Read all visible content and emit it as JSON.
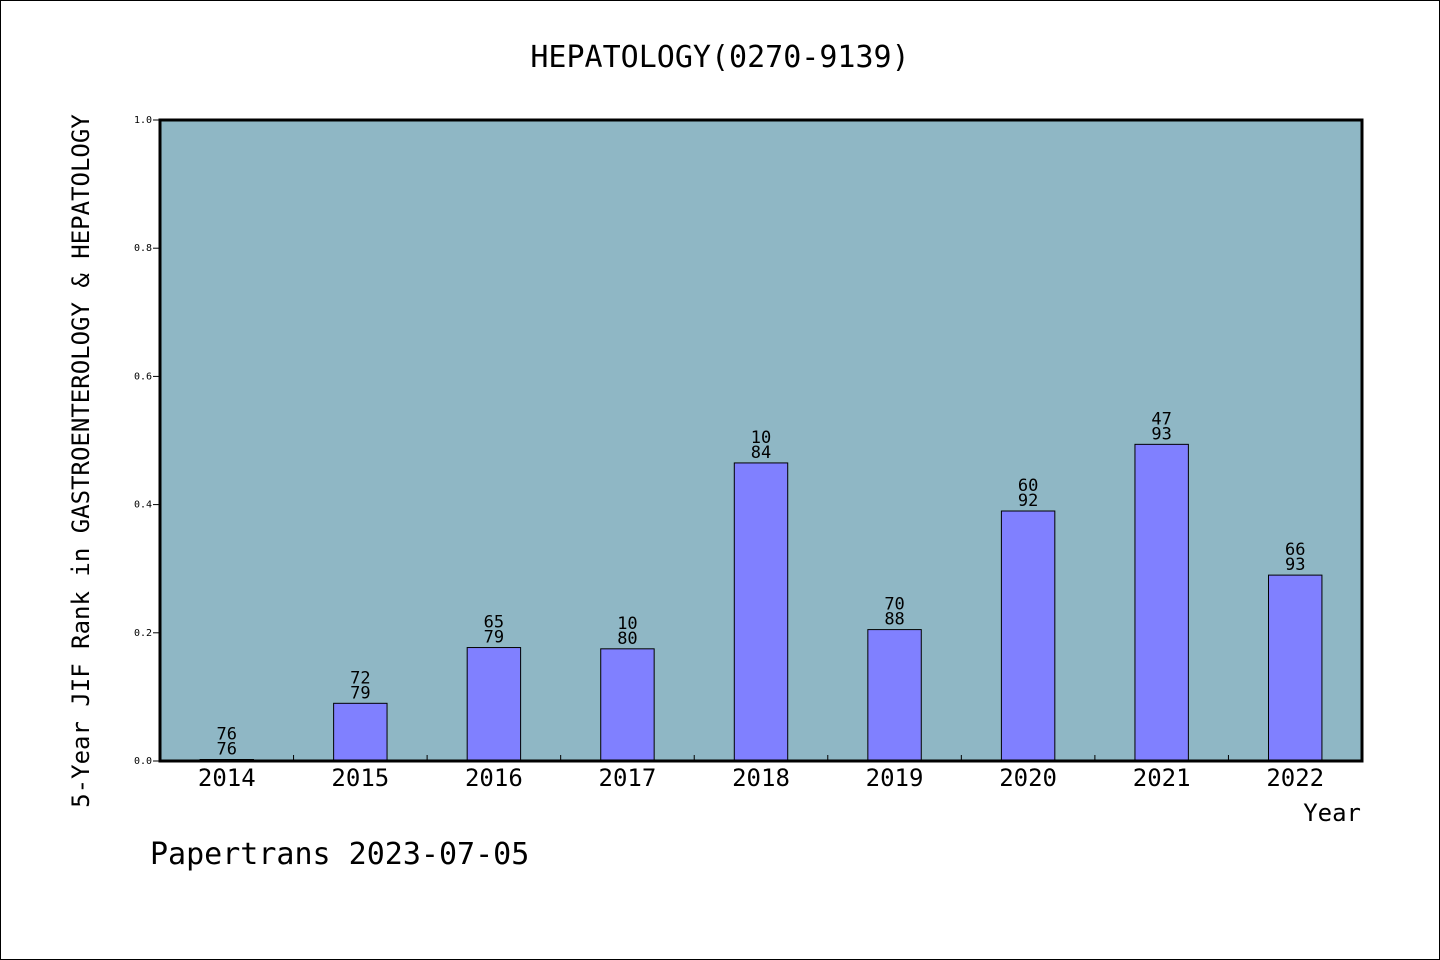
{
  "chart_data": {
    "type": "bar",
    "title": "HEPATOLOGY(0270-9139)",
    "xlabel": "Year",
    "ylabel": "5-Year JIF Rank in GASTROENTEROLOGY & HEPATOLOGY",
    "ylim": [
      0,
      1.0
    ],
    "yticks": [
      "0.0",
      "0.2",
      "0.4",
      "0.6",
      "0.8",
      "1.0"
    ],
    "categories": [
      "2014",
      "2015",
      "2016",
      "2017",
      "2018",
      "2019",
      "2020",
      "2021",
      "2022"
    ],
    "values": [
      0.0,
      0.09,
      0.177,
      0.175,
      0.465,
      0.205,
      0.39,
      0.494,
      0.29
    ],
    "labels_top": [
      "76",
      "72",
      "65",
      "10",
      "10",
      "70",
      "60",
      "47",
      "66"
    ],
    "labels_bottom": [
      "76",
      "79",
      "79",
      "80",
      "84",
      "88",
      "92",
      "93",
      "93"
    ],
    "grid": false,
    "colors": {
      "plot_bg": "#8fb7c5",
      "bar_fill": "#8080ff",
      "bar_stroke": "#000000"
    }
  },
  "watermark": "Papertrans 2023-07-05"
}
